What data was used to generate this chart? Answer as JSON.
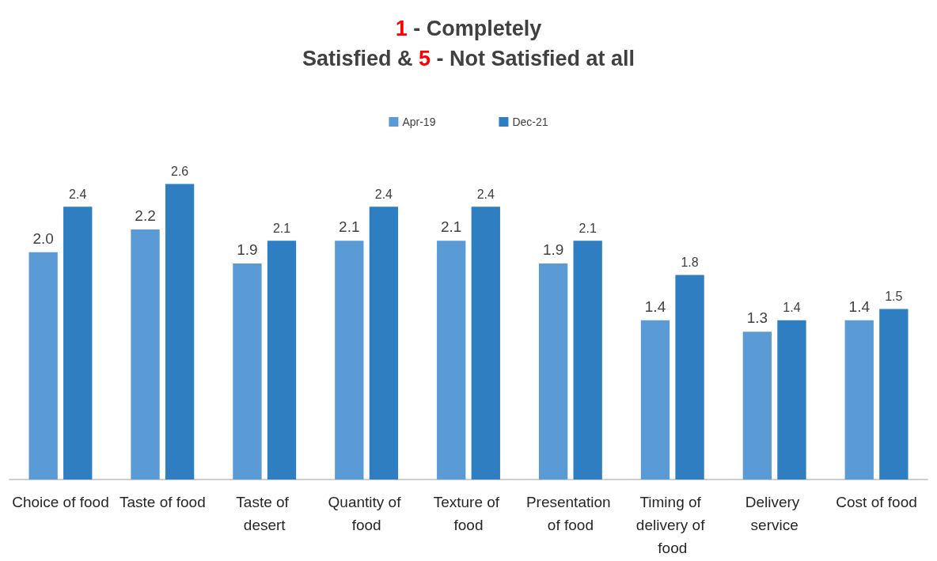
{
  "chart_data": {
    "type": "bar",
    "title": "1 - Completely\nSatisfied & 5 - Not Satisfied at all",
    "categories": [
      "Choice of food",
      "Taste of food",
      "Taste of desert",
      "Quantity of food",
      "Texture of food",
      "Presentation of food",
      "Timing of delivery of food",
      "Delivery service",
      "Cost of food"
    ],
    "series": [
      {
        "name": "Apr-19",
        "color": "#5b9bd5",
        "values": [
          2.0,
          2.2,
          1.9,
          2.1,
          2.1,
          1.9,
          1.4,
          1.3,
          1.4
        ],
        "value_labels": [
          "2.0",
          "2.2",
          "1.9",
          "2.1",
          "2.1",
          "1.9",
          "1.4",
          "1.3",
          "1.4"
        ]
      },
      {
        "name": "Dec-21",
        "color": "#2e7ec1",
        "values": [
          2.4,
          2.6,
          2.1,
          2.4,
          2.4,
          2.1,
          1.8,
          1.4,
          1.5
        ],
        "value_labels": [
          "2.4",
          "2.6",
          "2.1",
          "2.4",
          "2.4",
          "2.1",
          "1.8",
          "1.4",
          "1.5"
        ]
      }
    ],
    "legend": "top",
    "grid": false,
    "tick_labels": "x"
  }
}
